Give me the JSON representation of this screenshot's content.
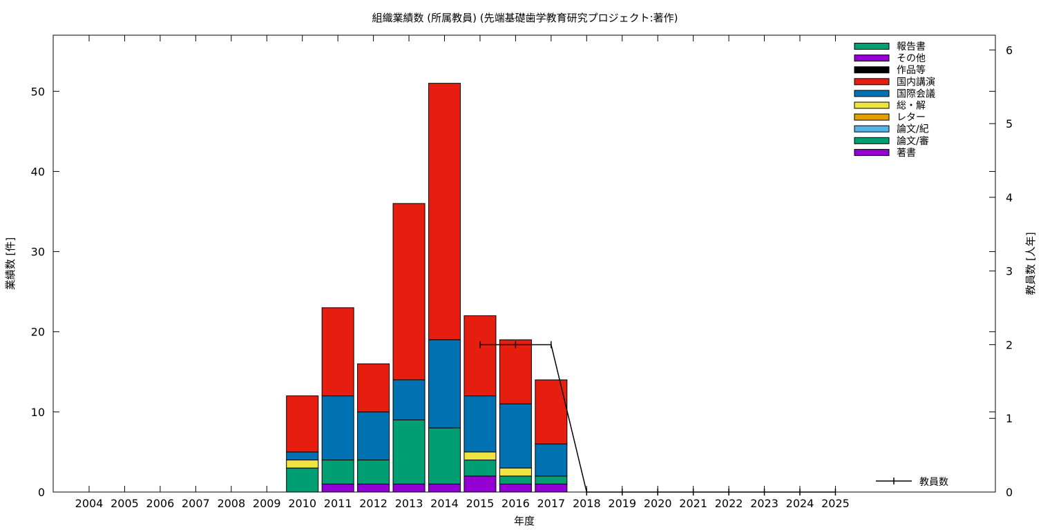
{
  "chart_data": {
    "type": "bar",
    "stacked": true,
    "title": "組織業績数 (所属教員) (先端基礎歯学教育研究プロジェクト:著作)",
    "xlabel": "年度",
    "ylabel": "業績数 [件]",
    "y2label": "教員数 [人年]",
    "categories": [
      "2004",
      "2005",
      "2006",
      "2007",
      "2008",
      "2009",
      "2010",
      "2011",
      "2012",
      "2013",
      "2014",
      "2015",
      "2016",
      "2017",
      "2018",
      "2019",
      "2020",
      "2021",
      "2022",
      "2023",
      "2024",
      "2025"
    ],
    "ylim": [
      0,
      57
    ],
    "yticks": [
      0,
      10,
      20,
      30,
      40,
      50
    ],
    "y2lim": [
      0,
      6.2
    ],
    "y2ticks": [
      0,
      1,
      2,
      3,
      4,
      5,
      6
    ],
    "grid": false,
    "legend_position": "top-right",
    "series": [
      {
        "name": "著書",
        "color": "#9400d3",
        "values": [
          0,
          0,
          0,
          0,
          0,
          0,
          0,
          1,
          1,
          1,
          1,
          2,
          1,
          1,
          0,
          0,
          0,
          0,
          0,
          0,
          0,
          0
        ]
      },
      {
        "name": "論文/審",
        "color": "#009e73",
        "values": [
          0,
          0,
          0,
          0,
          0,
          0,
          3,
          3,
          3,
          8,
          7,
          2,
          1,
          1,
          0,
          0,
          0,
          0,
          0,
          0,
          0,
          0
        ]
      },
      {
        "name": "論文/紀",
        "color": "#56b4e9",
        "values": [
          0,
          0,
          0,
          0,
          0,
          0,
          0,
          0,
          0,
          0,
          0,
          0,
          0,
          0,
          0,
          0,
          0,
          0,
          0,
          0,
          0,
          0
        ]
      },
      {
        "name": "レター",
        "color": "#e69f00",
        "values": [
          0,
          0,
          0,
          0,
          0,
          0,
          0,
          0,
          0,
          0,
          0,
          0,
          0,
          0,
          0,
          0,
          0,
          0,
          0,
          0,
          0,
          0
        ]
      },
      {
        "name": "総・解",
        "color": "#f0e442",
        "values": [
          0,
          0,
          0,
          0,
          0,
          0,
          1,
          0,
          0,
          0,
          0,
          1,
          1,
          0,
          0,
          0,
          0,
          0,
          0,
          0,
          0,
          0
        ]
      },
      {
        "name": "国際会議",
        "color": "#0072b2",
        "values": [
          0,
          0,
          0,
          0,
          0,
          0,
          1,
          8,
          6,
          5,
          11,
          7,
          8,
          4,
          0,
          0,
          0,
          0,
          0,
          0,
          0,
          0
        ]
      },
      {
        "name": "国内講演",
        "color": "#e51e10",
        "values": [
          0,
          0,
          0,
          0,
          0,
          0,
          7,
          11,
          6,
          22,
          32,
          10,
          8,
          8,
          0,
          0,
          0,
          0,
          0,
          0,
          0,
          0
        ]
      },
      {
        "name": "作品等",
        "color": "#000000",
        "values": [
          0,
          0,
          0,
          0,
          0,
          0,
          0,
          0,
          0,
          0,
          0,
          0,
          0,
          0,
          0,
          0,
          0,
          0,
          0,
          0,
          0,
          0
        ]
      },
      {
        "name": "その他",
        "color": "#9400d3",
        "values": [
          0,
          0,
          0,
          0,
          0,
          0,
          0,
          0,
          0,
          0,
          0,
          0,
          0,
          0,
          0,
          0,
          0,
          0,
          0,
          0,
          0,
          0
        ]
      },
      {
        "name": "報告書",
        "color": "#009e73",
        "values": [
          0,
          0,
          0,
          0,
          0,
          0,
          0,
          0,
          0,
          0,
          0,
          0,
          0,
          0,
          0,
          0,
          0,
          0,
          0,
          0,
          0,
          0
        ]
      }
    ],
    "line_series": {
      "name": "教員数",
      "axis": "y2",
      "color": "#000000",
      "x": [
        "2015",
        "2016",
        "2017",
        "2018",
        "2019",
        "2020",
        "2021",
        "2022",
        "2023",
        "2024",
        "2025"
      ],
      "values": [
        2,
        2,
        2,
        0,
        0,
        0,
        0,
        0,
        0,
        0,
        0
      ]
    },
    "legend_order": [
      "報告書",
      "その他",
      "作品等",
      "国内講演",
      "国際会議",
      "総・解",
      "レター",
      "論文/紀",
      "論文/審",
      "著書"
    ]
  }
}
